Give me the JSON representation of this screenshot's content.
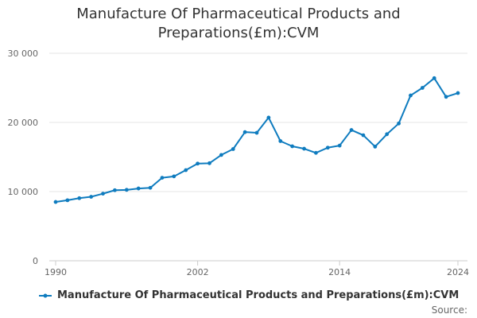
{
  "title_line1": "Manufacture Of Pharmaceutical Products and",
  "title_line2": "Preparations(£m):CVM",
  "legend_label": "Manufacture Of Pharmaceutical Products and Preparations(£m):CVM",
  "source_label": "Source:",
  "colors": {
    "series": "#0f7cbf",
    "grid": "#e6e6e6",
    "axis": "#cccccc"
  },
  "chart_data": {
    "type": "line",
    "title": "Manufacture Of Pharmaceutical Products and Preparations(£m):CVM",
    "xlabel": "",
    "ylabel": "",
    "xlim": [
      1990,
      2024
    ],
    "ylim": [
      0,
      30000
    ],
    "yticks": [
      0,
      10000,
      20000,
      30000
    ],
    "ytick_labels": [
      "0",
      "10 000",
      "20 000",
      "30 000"
    ],
    "xticks": [
      1990,
      2002,
      2014,
      2024
    ],
    "xtick_labels": [
      "1990",
      "2002",
      "2014",
      "2024"
    ],
    "grid": true,
    "legend": "bottom-left",
    "series": [
      {
        "name": "Manufacture Of Pharmaceutical Products and Preparations(£m):CVM",
        "x": [
          1990,
          1991,
          1992,
          1993,
          1994,
          1995,
          1996,
          1997,
          1998,
          1999,
          2000,
          2001,
          2002,
          2003,
          2004,
          2005,
          2006,
          2007,
          2008,
          2009,
          2010,
          2011,
          2012,
          2013,
          2014,
          2015,
          2016,
          2017,
          2018,
          2019,
          2020,
          2021,
          2022,
          2023,
          2024
        ],
        "values": [
          8500,
          8750,
          9050,
          9250,
          9700,
          10200,
          10250,
          10450,
          10550,
          12000,
          12200,
          13100,
          14050,
          14100,
          15300,
          16150,
          18600,
          18500,
          20700,
          17300,
          16550,
          16200,
          15600,
          16350,
          16650,
          18900,
          18150,
          16500,
          18300,
          19850,
          23900,
          25000,
          26400,
          23700,
          24250
        ]
      }
    ]
  }
}
